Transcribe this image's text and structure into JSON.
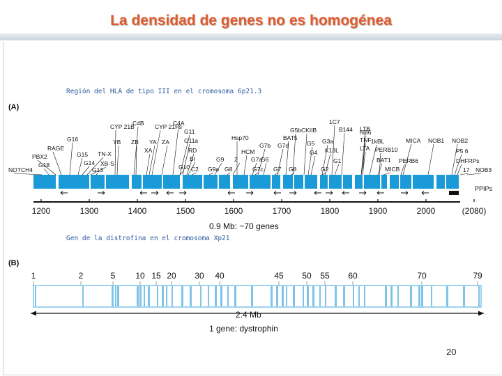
{
  "title": "La densidad de genes no es homogénea",
  "section_a": {
    "subtitle": "Región del HLA de tipo III en el cromosoma 6p21.3",
    "label": "(A)",
    "scale_ticks": [
      "1200",
      "1300",
      "1400",
      "1500",
      "1600",
      "1700",
      "1800",
      "1900",
      "2000",
      "(2080)"
    ],
    "scale_caption": "0.9 Mb: ~70 genes",
    "ppips_label": "PPIPs",
    "genes": [
      "NOTCH4",
      "G18",
      "PBX2",
      "RAGE",
      "G16",
      "G15",
      "G14",
      "TN-X",
      "XB-S",
      "G13",
      "CYP 21B",
      "YB",
      "C4B",
      "ZB",
      "CYP 21Ps",
      "YA",
      "XA",
      "ZA",
      "C4A",
      "G11",
      "G11a",
      "RD",
      "BI",
      "G10",
      "C2",
      "G9a",
      "G9",
      "2",
      "G8",
      "Hsp70",
      "HCM",
      "G7b",
      "G7c",
      "G7a",
      "G7d",
      "BAT5",
      "G6",
      "G7",
      "G5b",
      "CKIIB",
      "G5",
      "G4",
      "G3a",
      "K13L",
      "G8",
      "G2",
      "G1",
      "1C7",
      "B144",
      "LTB",
      "NB6",
      "TNF",
      "1kBL",
      "LTA",
      "BAT1",
      "MICB",
      "PERB10",
      "MICA",
      "PERB6",
      "NOB1",
      "NOB2",
      "P5 6",
      "DHFRPs",
      "17",
      "NOB3"
    ]
  },
  "section_b": {
    "subtitle": "Gen de la distrofina en el cromosoma Xp21",
    "label": "(B)",
    "exon_ticks": [
      "1",
      "2",
      "5",
      "10",
      "15",
      "20",
      "30",
      "40",
      "45",
      "50",
      "55",
      "60",
      "70",
      "79"
    ],
    "scale_caption": "2.4 Mb",
    "gene_caption": "1 gene: dystrophin"
  },
  "page_number": "20",
  "colors": {
    "title": "#e25a2a",
    "gene_blue": "#1a9ad6",
    "exon_blue": "#7fc3e8",
    "subtitle": "#2c5aa0"
  }
}
